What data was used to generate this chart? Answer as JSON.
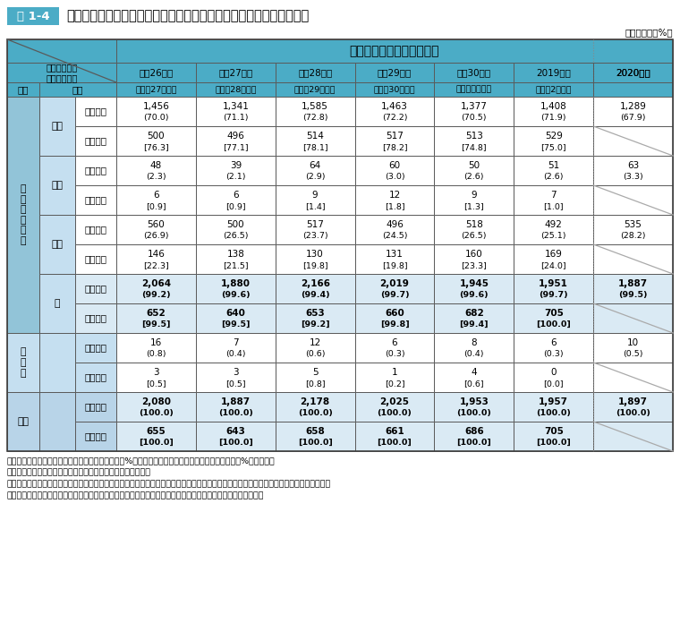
{
  "title_badge": "表 1-4",
  "title_text": "国家公務員採用総合職試験の年度別、学歴別の合格者数及び採用者数",
  "unit_label": "（単位：人、%）",
  "col_headers_row2": [
    "平成26年度",
    "平成27年度",
    "平成28年度",
    "平成29年度",
    "平成30年度",
    "2019年度",
    "2020年度"
  ],
  "col_headers_row3": [
    "（平成27年度）",
    "（平成28年度）",
    "（平成29年度）",
    "（平成30年度）",
    "（令和元年度）",
    "（令和2年度）",
    ""
  ],
  "row_groups": [
    {
      "group": "大学院・大学",
      "subgroups": [
        {
          "name": "国立",
          "rows": [
            {
              "label": "合格者数",
              "values": [
                "1,456\n(70.0)",
                "1,341\n(71.1)",
                "1,585\n(72.8)",
                "1,463\n(72.2)",
                "1,377\n(70.5)",
                "1,408\n(71.9)",
                "1,289\n(67.9)"
              ],
              "bold": false
            },
            {
              "label": "採用者数",
              "values": [
                "500\n[76.3]",
                "496\n[77.1]",
                "514\n[78.1]",
                "517\n[78.2]",
                "513\n[74.8]",
                "529\n[75.0]",
                ""
              ],
              "bold": false
            }
          ]
        },
        {
          "name": "公立",
          "rows": [
            {
              "label": "合格者数",
              "values": [
                "48\n(2.3)",
                "39\n(2.1)",
                "64\n(2.9)",
                "60\n(3.0)",
                "50\n(2.6)",
                "51\n(2.6)",
                "63\n(3.3)"
              ],
              "bold": false
            },
            {
              "label": "採用者数",
              "values": [
                "6\n[0.9]",
                "6\n[0.9]",
                "9\n[1.4]",
                "12\n[1.8]",
                "9\n[1.3]",
                "7\n[1.0]",
                ""
              ],
              "bold": false
            }
          ]
        },
        {
          "name": "私立",
          "rows": [
            {
              "label": "合格者数",
              "values": [
                "560\n(26.9)",
                "500\n(26.5)",
                "517\n(23.7)",
                "496\n(24.5)",
                "518\n(26.5)",
                "492\n(25.1)",
                "535\n(28.2)"
              ],
              "bold": false
            },
            {
              "label": "採用者数",
              "values": [
                "146\n[22.3]",
                "138\n[21.5]",
                "130\n[19.8]",
                "131\n[19.8]",
                "160\n[23.3]",
                "169\n[24.0]",
                ""
              ],
              "bold": false
            }
          ]
        },
        {
          "name": "計",
          "rows": [
            {
              "label": "合格者数",
              "values": [
                "2,064\n(99.2)",
                "1,880\n(99.6)",
                "2,166\n(99.4)",
                "2,019\n(99.7)",
                "1,945\n(99.6)",
                "1,951\n(99.7)",
                "1,887\n(99.5)"
              ],
              "bold": true
            },
            {
              "label": "採用者数",
              "values": [
                "652\n[99.5]",
                "640\n[99.5]",
                "653\n[99.2]",
                "660\n[99.8]",
                "682\n[99.4]",
                "705\n[100.0]",
                ""
              ],
              "bold": true
            }
          ]
        }
      ]
    },
    {
      "group": "その他",
      "subgroups": [
        {
          "name": "",
          "rows": [
            {
              "label": "合格者数",
              "values": [
                "16\n(0.8)",
                "7\n(0.4)",
                "12\n(0.6)",
                "6\n(0.3)",
                "8\n(0.4)",
                "6\n(0.3)",
                "10\n(0.5)"
              ],
              "bold": false
            },
            {
              "label": "採用者数",
              "values": [
                "3\n[0.5]",
                "3\n[0.5]",
                "5\n[0.8]",
                "1\n[0.2]",
                "4\n[0.6]",
                "0\n[0.0]",
                ""
              ],
              "bold": false
            }
          ]
        }
      ]
    }
  ],
  "total_rows": [
    {
      "label": "合格者数",
      "values": [
        "2,080\n(100.0)",
        "1,887\n(100.0)",
        "2,178\n(100.0)",
        "2,025\n(100.0)",
        "1,953\n(100.0)",
        "1,957\n(100.0)",
        "1,897\n(100.0)"
      ],
      "bold": true
    },
    {
      "label": "採用者数",
      "values": [
        "655\n[100.0]",
        "643\n[100.0]",
        "658\n[100.0]",
        "661\n[100.0]",
        "686\n[100.0]",
        "705\n[100.0]",
        ""
      ],
      "bold": true
    }
  ],
  "notes": [
    "（注）１　（　）内は、合格者総数に対する割合（%）を、［　］内は、採用者総数に対する割合（%）を示す。",
    "　　　２　「その他」は、短大・高専、外国の大学等である。",
    "　　　３　国家公務員採用総合職試験は、院卒者試験（法務区分を含む。）及び大卒程度試験（教養区分を含む。）を合計した人数である。",
    "　　　４　採用者数は、名簿作成年度の翌年度における採用者数である（過年度名簿等からの採用者を含む）。"
  ],
  "colors": {
    "header_bg": "#4bacc6",
    "group_label_bg": "#92c4d8",
    "subgroup_label_bg": "#c5dff0",
    "sonota_bg": "#c5dff0",
    "total_label_bg": "#b8d4e8",
    "kei_item_bg": "#daeaf4",
    "total_item_bg": "#b8d4e8",
    "data_bg": "#ffffff",
    "kei_data_bg": "#daeaf4",
    "total_data_bg": "#daeaf4"
  }
}
